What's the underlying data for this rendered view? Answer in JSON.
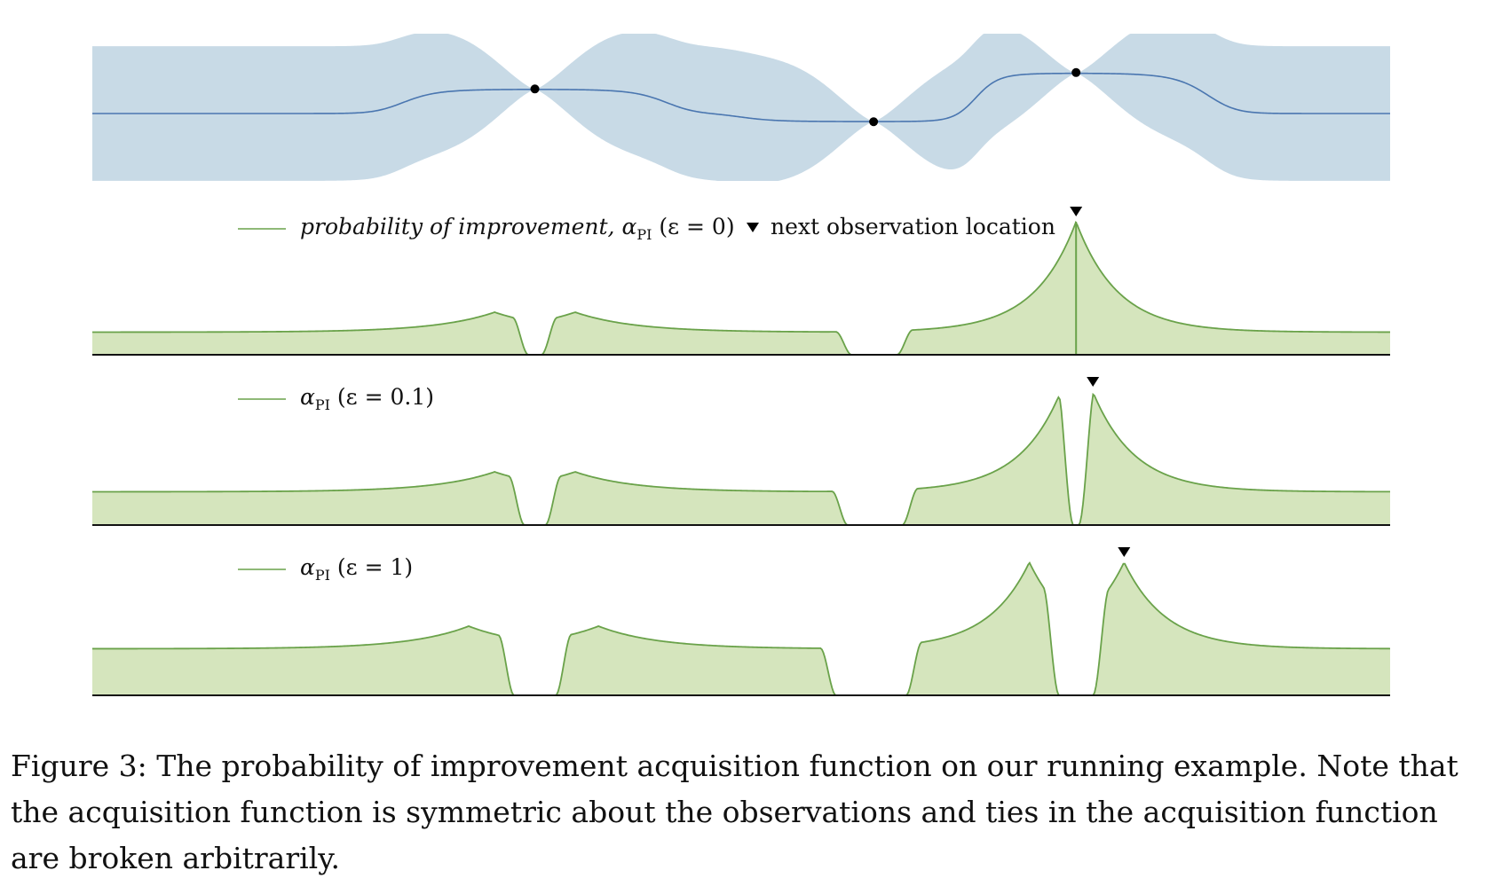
{
  "caption": "Figure 3: The probability of improvement acquisition function on our running example. Note that the acquisition function is symmetric about the observations and ties in the acquisition function are broken arbitrarily.",
  "colors": {
    "gp_band": "#c8dae6",
    "gp_mean": "#4a76b0",
    "acq_fill": "#d5e5bd",
    "acq_line": "#6aa24a",
    "axis": "#111111",
    "marker": "#000000"
  },
  "chart_data": [
    {
      "type": "area",
      "panel": "gp-posterior",
      "xlim": [
        0,
        1
      ],
      "observations": [
        {
          "x": 0.341,
          "y": 0.42
        },
        {
          "x": 0.602,
          "y": -0.14
        },
        {
          "x": 0.758,
          "y": 0.7
        }
      ],
      "band_half_width": 1.0,
      "grid": false,
      "legend": []
    },
    {
      "type": "area",
      "panel": "pi-eps-0",
      "legend": [
        {
          "label": "probability of improvement, α",
          "sub": "PI",
          "suffix": " (ε = 0)"
        },
        {
          "label": "next observation location",
          "marker": "▼"
        }
      ],
      "peaks": [
        {
          "x": 0.31,
          "y": 0.32
        },
        {
          "x": 0.372,
          "y": 0.32
        },
        {
          "x": 0.758,
          "y": 1.0
        }
      ],
      "baseline_value": 0.17,
      "zero_intervals": [
        [
          0.336,
          0.346
        ],
        [
          0.585,
          0.62
        ]
      ],
      "next_observation_x": 0.758,
      "ylim": [
        0,
        1
      ]
    },
    {
      "type": "area",
      "panel": "pi-eps-0.1",
      "legend": [
        {
          "label": "α",
          "sub": "PI",
          "suffix": " (ε = 0.1)"
        }
      ],
      "peaks": [
        {
          "x": 0.31,
          "y": 0.4
        },
        {
          "x": 0.372,
          "y": 0.4
        },
        {
          "x": 0.746,
          "y": 1.0
        },
        {
          "x": 0.771,
          "y": 1.0
        }
      ],
      "baseline_value": 0.25,
      "zero_intervals": [
        [
          0.333,
          0.349
        ],
        [
          0.582,
          0.624
        ],
        [
          0.756,
          0.76
        ]
      ],
      "next_observation_x": 0.771,
      "ylim": [
        0,
        1
      ]
    },
    {
      "type": "area",
      "panel": "pi-eps-1",
      "legend": [
        {
          "label": "α",
          "sub": "PI",
          "suffix": " (ε = 1)"
        }
      ],
      "peaks": [
        {
          "x": 0.29,
          "y": 0.52
        },
        {
          "x": 0.39,
          "y": 0.52
        },
        {
          "x": 0.722,
          "y": 1.0
        },
        {
          "x": 0.795,
          "y": 1.0
        }
      ],
      "baseline_value": 0.35,
      "zero_intervals": [
        [
          0.325,
          0.357
        ],
        [
          0.573,
          0.627
        ],
        [
          0.745,
          0.771
        ]
      ],
      "next_observation_x": 0.795,
      "ylim": [
        0,
        1
      ]
    }
  ]
}
